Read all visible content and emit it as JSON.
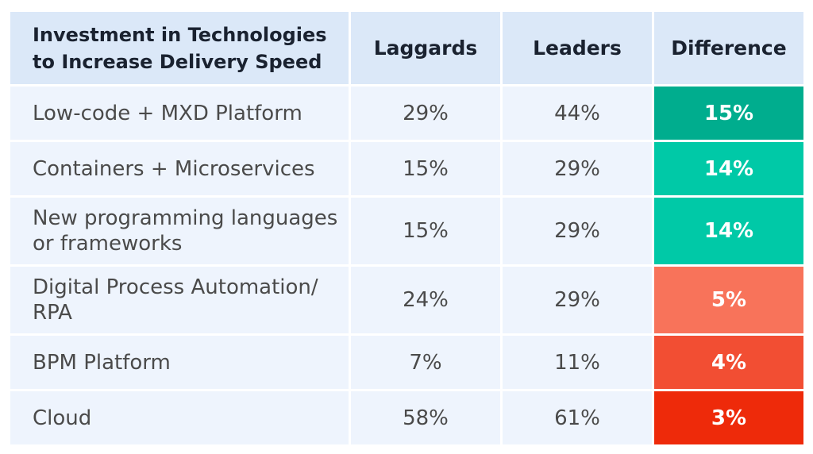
{
  "chart_data": {
    "type": "table",
    "header": {
      "title": "Investment in Technologies to Increase Delivery Speed",
      "columns": [
        "Laggards",
        "Leaders",
        "Difference"
      ]
    },
    "rows": [
      {
        "label": "Low-code + MXD Platform",
        "laggards": "29%",
        "leaders": "44%",
        "difference": "15%",
        "color": "#00ad8e"
      },
      {
        "label": "Containers + Microservices",
        "laggards": "15%",
        "leaders": "29%",
        "difference": "14%",
        "color": "#00c9a7"
      },
      {
        "label": "New programming languages or frameworks",
        "laggards": "15%",
        "leaders": "29%",
        "difference": "14%",
        "color": "#00c9a7"
      },
      {
        "label": "Digital Process Automation/ RPA",
        "laggards": "24%",
        "leaders": "29%",
        "difference": "5%",
        "color": "#f8735a"
      },
      {
        "label": "BPM Platform",
        "laggards": "7%",
        "leaders": "11%",
        "difference": "4%",
        "color": "#f24e33"
      },
      {
        "label": "Cloud",
        "laggards": "58%",
        "leaders": "61%",
        "difference": "3%",
        "color": "#ee2a0a"
      }
    ]
  }
}
